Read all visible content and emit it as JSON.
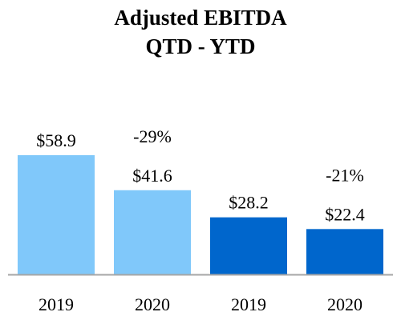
{
  "chart_data": {
    "type": "bar",
    "title": "Adjusted EBITDA",
    "subtitle": "QTD - YTD",
    "categories": [
      "2019",
      "2020",
      "2019",
      "2020"
    ],
    "values": [
      58.9,
      41.6,
      28.2,
      22.4
    ],
    "value_labels": [
      "$58.9",
      "$41.6",
      "$28.2",
      "$22.4"
    ],
    "annotations": [
      {
        "text": "-29%",
        "category_index": 1
      },
      {
        "text": "-21%",
        "category_index": 3
      }
    ],
    "bar_colors": [
      "#80c8fa",
      "#80c8fa",
      "#0066cc",
      "#0066cc"
    ],
    "ylim": [
      0,
      85
    ],
    "grid": false,
    "legend": "none"
  },
  "colors": {
    "light_blue": "#80c8fa",
    "dark_blue": "#0066cc",
    "baseline": "#a6a6a6"
  }
}
